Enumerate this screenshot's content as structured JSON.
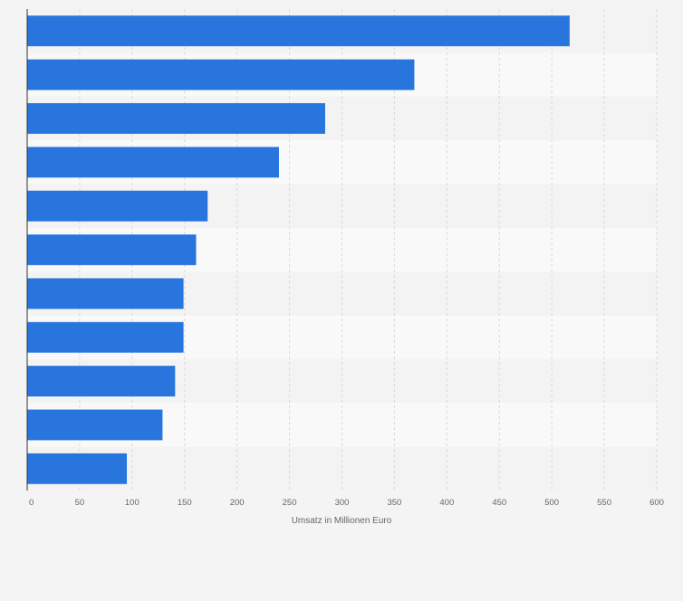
{
  "chart_data": {
    "type": "bar",
    "orientation": "horizontal",
    "categories": [
      "",
      "",
      "",
      "",
      "",
      "",
      "",
      "",
      "",
      "",
      ""
    ],
    "values": [
      517,
      369,
      284,
      240,
      172,
      161,
      149,
      149,
      141,
      129,
      95
    ],
    "title": "",
    "xlabel": "Umsatz in Millionen Euro",
    "ylabel": "",
    "xlim": [
      0,
      600
    ],
    "ticks": [
      0,
      50,
      100,
      150,
      200,
      250,
      300,
      350,
      400,
      450,
      500,
      550,
      600
    ],
    "grid": true,
    "legend": "none"
  },
  "colors": {
    "bar": "#2876dd",
    "row_light": "#f9f9f9",
    "row_dark": "#f3f3f3",
    "grid": "#d9d9d9",
    "axis": "#333333",
    "tick_text": "#666666"
  }
}
